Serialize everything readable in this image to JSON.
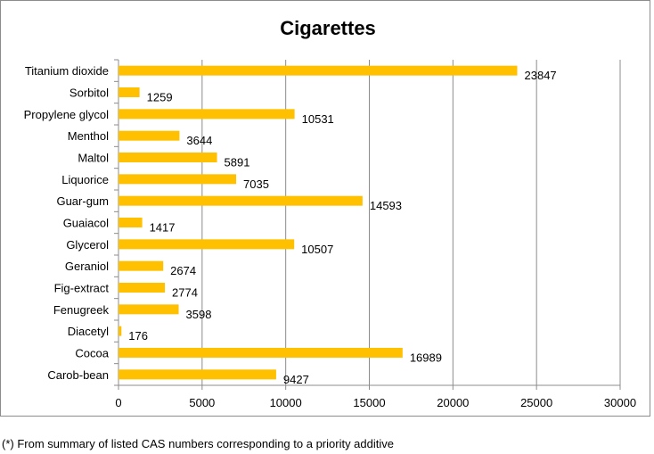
{
  "chart_data": {
    "type": "bar",
    "orientation": "horizontal",
    "title": "Cigarettes",
    "categories": [
      "Carob-bean",
      "Cocoa",
      "Diacetyl",
      "Fenugreek",
      "Fig-extract",
      "Geraniol",
      "Glycerol",
      "Guaiacol",
      "Guar-gum",
      "Liquorice",
      "Maltol",
      "Menthol",
      "Propylene glycol",
      "Sorbitol",
      "Titanium dioxide"
    ],
    "values": [
      9427,
      16989,
      176,
      3598,
      2774,
      2674,
      10507,
      1417,
      14593,
      7035,
      5891,
      3644,
      10531,
      1259,
      23847
    ],
    "xlim": [
      0,
      30000
    ],
    "xticks": [
      0,
      5000,
      10000,
      15000,
      20000,
      25000,
      30000
    ],
    "grid": "vertical",
    "legend": "none",
    "data_labels": true,
    "colors": {
      "bar": "#FFC000",
      "grid": "#8c8c8c",
      "axis": "#8c8c8c",
      "border": "#8c8c8c"
    }
  },
  "footnote": "(*) From summary of listed CAS numbers corresponding to a priority additive"
}
